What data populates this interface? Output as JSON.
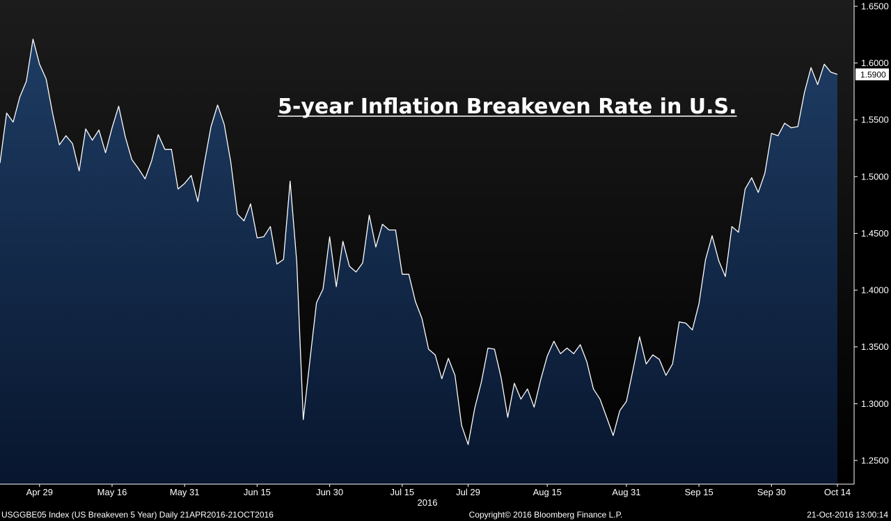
{
  "chart_data": {
    "type": "area",
    "title": "5-year Inflation Breakeven Rate in U.S.",
    "ylim": [
      1.225,
      1.65
    ],
    "y_ticks": [
      "1.2500",
      "1.3000",
      "1.3500",
      "1.4000",
      "1.4500",
      "1.5000",
      "1.5500",
      "1.6000",
      "1.6500"
    ],
    "x_ticks": [
      {
        "label": "Apr 29",
        "index": 6
      },
      {
        "label": "May 16",
        "index": 17
      },
      {
        "label": "May 31",
        "index": 28
      },
      {
        "label": "Jun 15",
        "index": 39
      },
      {
        "label": "Jun 30",
        "index": 50
      },
      {
        "label": "Jul 15",
        "index": 61
      },
      {
        "label": "Jul 29",
        "index": 71
      },
      {
        "label": "Aug 15",
        "index": 83
      },
      {
        "label": "Aug 31",
        "index": 95
      },
      {
        "label": "Sep 15",
        "index": 106
      },
      {
        "label": "Sep 30",
        "index": 117
      },
      {
        "label": "Oct 14",
        "index": 127
      }
    ],
    "year_label": "2016",
    "last_value_label": "1.5900",
    "series": [
      {
        "start": "2016-04-21",
        "end": "2016-10-21",
        "values": [
          1.512,
          1.556,
          1.548,
          1.57,
          1.584,
          1.621,
          1.599,
          1.586,
          1.555,
          1.528,
          1.536,
          1.529,
          1.505,
          1.542,
          1.532,
          1.541,
          1.521,
          1.543,
          1.562,
          1.535,
          1.515,
          1.507,
          1.498,
          1.514,
          1.537,
          1.524,
          1.524,
          1.489,
          1.494,
          1.501,
          1.478,
          1.512,
          1.544,
          1.563,
          1.546,
          1.513,
          1.467,
          1.461,
          1.476,
          1.446,
          1.447,
          1.456,
          1.423,
          1.427,
          1.496,
          1.425,
          1.286,
          1.338,
          1.389,
          1.401,
          1.447,
          1.403,
          1.443,
          1.421,
          1.416,
          1.424,
          1.466,
          1.438,
          1.458,
          1.453,
          1.453,
          1.414,
          1.414,
          1.39,
          1.375,
          1.348,
          1.343,
          1.322,
          1.34,
          1.325,
          1.281,
          1.264,
          1.296,
          1.319,
          1.349,
          1.348,
          1.323,
          1.288,
          1.318,
          1.304,
          1.313,
          1.297,
          1.321,
          1.342,
          1.355,
          1.344,
          1.349,
          1.344,
          1.352,
          1.337,
          1.313,
          1.304,
          1.288,
          1.272,
          1.294,
          1.302,
          1.33,
          1.359,
          1.335,
          1.343,
          1.339,
          1.325,
          1.335,
          1.372,
          1.371,
          1.365,
          1.388,
          1.427,
          1.448,
          1.426,
          1.412,
          1.456,
          1.451,
          1.489,
          1.499,
          1.486,
          1.503,
          1.538,
          1.536,
          1.547,
          1.543,
          1.544,
          1.574,
          1.596,
          1.581,
          1.599,
          1.592,
          1.59
        ]
      }
    ]
  },
  "footer": {
    "left": "USGGBE05 Index (US Breakeven 5 Year)  Daily 21APR2016-21OCT2016",
    "center": "Copyright© 2016 Bloomberg Finance L.P.",
    "right": "21-Oct-2016 13:00:14"
  },
  "colors": {
    "background": "#000000",
    "line": "#ffffff",
    "area_top": "#1e3c63",
    "area_bottom": "#08162e",
    "plot_bg_top": "#1c1c1c",
    "plot_bg_bottom": "#000000"
  }
}
